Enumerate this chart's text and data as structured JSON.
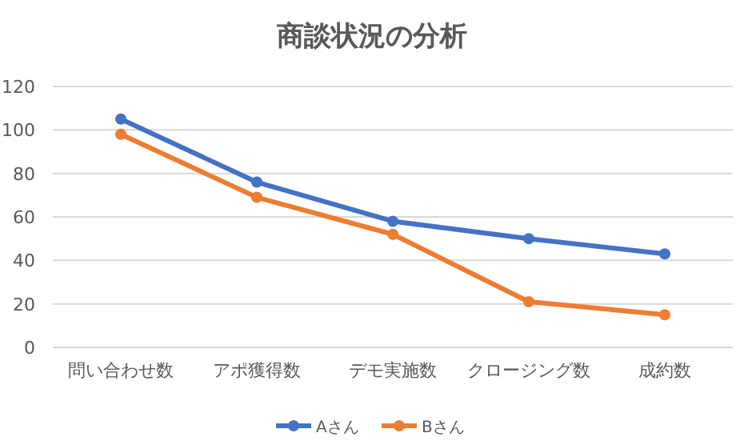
{
  "chart_data": {
    "type": "line",
    "title": "商談状況の分析",
    "categories": [
      "問い合わせ数",
      "アポ獲得数",
      "デモ実施数",
      "クロージング数",
      "成約数"
    ],
    "series": [
      {
        "name": "Aさん",
        "color": "#4472c4",
        "values": [
          105,
          76,
          58,
          50,
          43
        ]
      },
      {
        "name": "Bさん",
        "color": "#ed7d31",
        "values": [
          98,
          69,
          52,
          21,
          15
        ]
      }
    ],
    "ylim": [
      0,
      120
    ],
    "yticks": [
      0,
      20,
      40,
      60,
      80,
      100,
      120
    ],
    "grid": "y",
    "legend": "bottom",
    "marker": "circle",
    "line_style": "solid"
  }
}
